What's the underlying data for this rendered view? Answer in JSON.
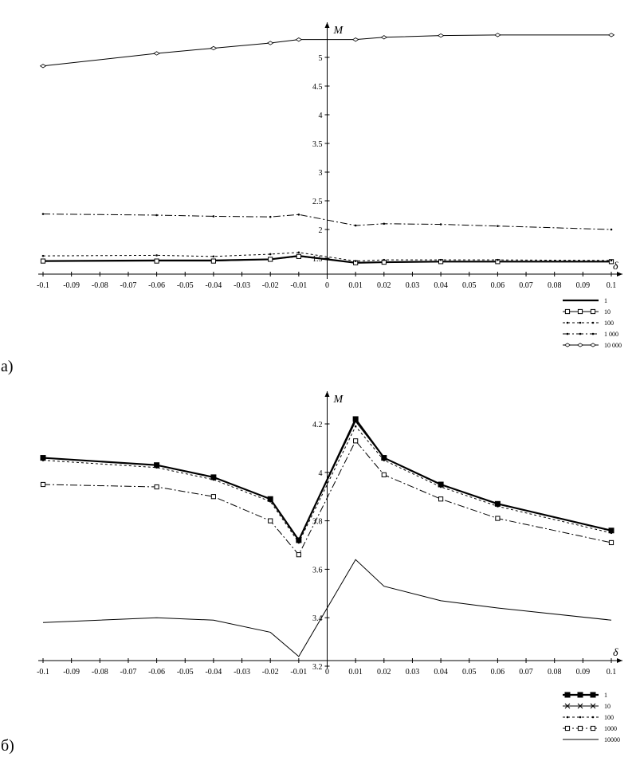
{
  "figure": {
    "panels": [
      {
        "panel_label": "а)",
        "ylabel": "M",
        "xlabel": "δ"
      },
      {
        "panel_label": "б)",
        "ylabel": "M",
        "xlabel": "δ"
      }
    ]
  },
  "chart_data": [
    {
      "type": "line",
      "panel": "а)",
      "xlabel": "δ",
      "ylabel": "M",
      "xlim": [
        -0.1,
        0.1
      ],
      "ylim": [
        1.3,
        5.4
      ],
      "x_ticks": [
        -0.1,
        -0.09,
        -0.08,
        -0.07,
        -0.06,
        -0.05,
        -0.04,
        -0.03,
        -0.02,
        -0.01,
        0,
        0.01,
        0.02,
        0.03,
        0.04,
        0.05,
        0.06,
        0.07,
        0.08,
        0.09,
        0.1
      ],
      "x_tick_labels": [
        "-0.1",
        "-0.09",
        "-0.08",
        "-0.07",
        "-0.06",
        "-0.05",
        "-0.04",
        "-0.03",
        "-0.02",
        "-0.01",
        "0",
        "0.01",
        "0.02",
        "0.03",
        "0.04",
        "0.05",
        "0.06",
        "0.07",
        "0.08",
        "0.09",
        "0.1"
      ],
      "y_ticks": [
        1.5,
        2,
        2.5,
        3,
        3.5,
        4,
        4.5,
        5
      ],
      "y_tick_labels": [
        "1.5",
        "2",
        "2.5",
        "3",
        "3.5",
        "4",
        "4.5",
        "5"
      ],
      "legend_position": "bottom-right",
      "grid": false,
      "x": [
        -0.1,
        -0.06,
        -0.04,
        -0.02,
        -0.01,
        0.01,
        0.02,
        0.04,
        0.06,
        0.1
      ],
      "series": [
        {
          "name": "1",
          "values": [
            1.45,
            1.46,
            1.46,
            1.48,
            1.54,
            1.42,
            1.43,
            1.44,
            1.44,
            1.44
          ],
          "dash": "none",
          "stroke_width": 2.2,
          "marker": "none"
        },
        {
          "name": "10",
          "values": [
            1.45,
            1.45,
            1.45,
            1.48,
            1.53,
            1.42,
            1.43,
            1.44,
            1.44,
            1.44
          ],
          "dash": "none",
          "stroke_width": 1,
          "marker": "square"
        },
        {
          "name": "100",
          "values": [
            1.54,
            1.55,
            1.53,
            1.57,
            1.6,
            1.45,
            1.47,
            1.47,
            1.47,
            1.46
          ],
          "dash": "3,3",
          "stroke_width": 1,
          "marker": "small"
        },
        {
          "name": "1 000",
          "values": [
            2.27,
            2.25,
            2.23,
            2.22,
            2.26,
            2.07,
            2.1,
            2.09,
            2.06,
            2.0
          ],
          "dash": "9,3,2,3",
          "stroke_width": 1,
          "marker": "small"
        },
        {
          "name": "10 000",
          "values": [
            4.85,
            5.07,
            5.16,
            5.25,
            5.31,
            5.31,
            5.35,
            5.38,
            5.39,
            5.39
          ],
          "dash": "none",
          "stroke_width": 1,
          "marker": "diamond"
        }
      ]
    },
    {
      "type": "line",
      "panel": "б)",
      "xlabel": "δ",
      "ylabel": "M",
      "xlim": [
        -0.1,
        0.1
      ],
      "ylim": [
        3.2,
        4.28
      ],
      "x_ticks": [
        -0.1,
        -0.09,
        -0.08,
        -0.07,
        -0.06,
        -0.05,
        -0.04,
        -0.03,
        -0.02,
        -0.01,
        0,
        0.01,
        0.02,
        0.03,
        0.04,
        0.05,
        0.06,
        0.07,
        0.08,
        0.09,
        0.1
      ],
      "x_tick_labels": [
        "-0.1",
        "-0.09",
        "-0.08",
        "-0.07",
        "-0.06",
        "-0.05",
        "-0.04",
        "-0.03",
        "-0.02",
        "-0.01",
        "0",
        "0.01",
        "0.02",
        "0.03",
        "0.04",
        "0.05",
        "0.06",
        "0.07",
        "0.08",
        "0.09",
        "0.1"
      ],
      "y_ticks": [
        3.2,
        3.4,
        3.6,
        3.8,
        4,
        4.2
      ],
      "y_tick_labels": [
        "3.2",
        "3.4",
        "3.6",
        "3.8",
        "4",
        "4.2"
      ],
      "legend_position": "bottom-right",
      "grid": false,
      "x": [
        -0.1,
        -0.06,
        -0.04,
        -0.02,
        -0.01,
        0.01,
        0.02,
        0.04,
        0.06,
        0.1
      ],
      "series": [
        {
          "name": "1",
          "values": [
            4.06,
            4.03,
            3.98,
            3.89,
            3.72,
            4.22,
            4.06,
            3.95,
            3.87,
            3.76
          ],
          "dash": "none",
          "stroke_width": 2.2,
          "marker": "filled-square"
        },
        {
          "name": "10",
          "values": [
            4.06,
            4.03,
            3.98,
            3.89,
            3.72,
            4.21,
            4.06,
            3.95,
            3.87,
            3.76
          ],
          "dash": "none",
          "stroke_width": 1,
          "marker": "cross"
        },
        {
          "name": "100",
          "values": [
            4.05,
            4.02,
            3.97,
            3.88,
            3.71,
            4.19,
            4.05,
            3.94,
            3.86,
            3.75
          ],
          "dash": "3,3",
          "stroke_width": 1,
          "marker": "small"
        },
        {
          "name": "1000",
          "values": [
            3.95,
            3.94,
            3.9,
            3.8,
            3.66,
            4.13,
            3.99,
            3.89,
            3.81,
            3.71
          ],
          "dash": "9,3,2,3",
          "stroke_width": 1,
          "marker": "square"
        },
        {
          "name": "10000",
          "values": [
            3.38,
            3.4,
            3.39,
            3.34,
            3.24,
            3.64,
            3.53,
            3.47,
            3.44,
            3.39
          ],
          "dash": "none",
          "stroke_width": 1,
          "marker": "none"
        }
      ]
    }
  ]
}
